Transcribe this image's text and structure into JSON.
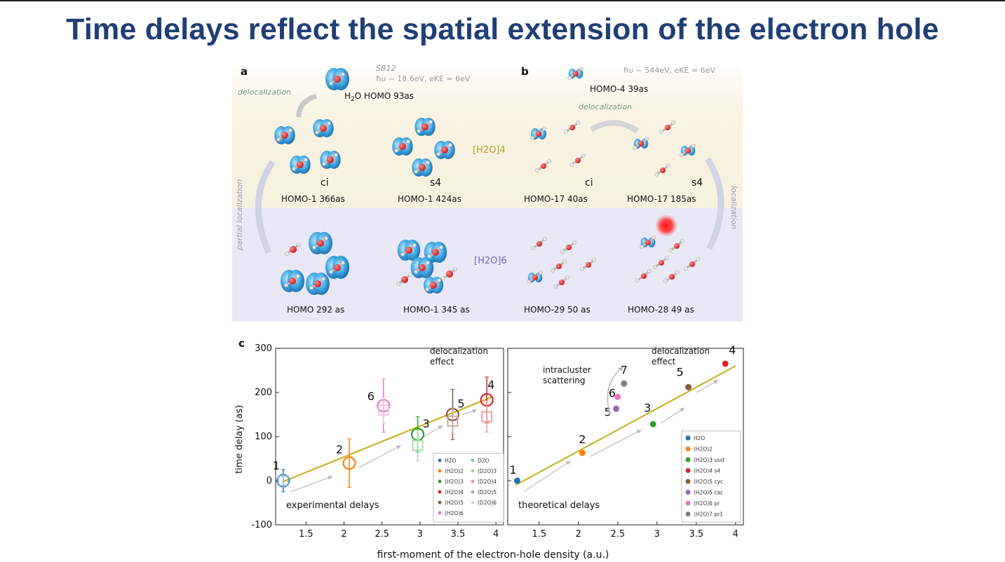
{
  "slide": {
    "title": "Time delays reflect the spatial extension of the electron hole"
  },
  "panel_a": {
    "letter": "a",
    "sb_label": "SB12",
    "energy_label": "ħυ ~ 18.6eV, eKE = 6eV",
    "top_label_pre": "H",
    "top_label_sub": "2",
    "top_label_post": "O HOMO 93as",
    "delocalization": "delocalization",
    "partial_localization": "partial localization",
    "cluster4_label": "[H2O]4",
    "cluster6_label": "[H2O]6",
    "ci": "ci",
    "s4": "s4",
    "homo1_ci": "HOMO-1 366as",
    "homo1_s4": "HOMO-1 424as",
    "homo_292": "HOMO 292 as",
    "homo1_345": "HOMO-1 345 as"
  },
  "panel_b": {
    "letter": "b",
    "energy_label": "ħυ ~ 544eV, eKE = 6eV",
    "top_label": "HOMO-4 39as",
    "delocalization": "delocalization",
    "localization": "localization",
    "ci": "ci",
    "s4": "s4",
    "homo17_ci": "HOMO-17 40as",
    "homo17_s4": "HOMO-17 185as",
    "homo29": "HOMO-29 50 as",
    "homo28": "HOMO-28 49 as"
  },
  "panel_c": {
    "letter": "c",
    "ylabel": "time delay (as)",
    "xlabel": "first-moment of the electron-hole density (a.u.)",
    "left_note": "delocalization\neffect",
    "left_caption": "experimental delays",
    "right_note": "delocalization\neffect",
    "right_caption": "theoretical delays",
    "intracluster": "intracluster\nscattering"
  },
  "colors": {
    "title": "#1f3f75",
    "fit_line": "#c9b42a",
    "band_top": "#f7f2df",
    "band_bottom": "#e9e8f6",
    "water_h2o": "#1f77b4",
    "dimer": "#ff7f0e",
    "trimer": "#2ca02c",
    "tetramer": "#d62728",
    "pentamer": "#8c564b",
    "pentamer_cac": "#9467bd",
    "hexamer": "#e377c2",
    "heptamer": "#7f7f7f"
  },
  "chart_data": [
    {
      "type": "scatter",
      "title": "",
      "xlabel": "first-moment of the electron-hole density (a.u.)",
      "ylabel": "time delay (as)",
      "xlim": [
        1.1,
        4.1
      ],
      "ylim": [
        -100,
        300
      ],
      "xticks": [
        "1.5",
        "2",
        "2.5",
        "3",
        "3.5",
        "4"
      ],
      "yticks": [
        "-100",
        "0",
        "100",
        "200",
        "300"
      ],
      "fit_line": {
        "x": [
          1.2,
          3.95
        ],
        "y": [
          -2,
          190
        ]
      },
      "series": [
        {
          "name": "H2O",
          "color": "#1f77b4",
          "x": [
            1.2
          ],
          "y": [
            0
          ],
          "err": [
            25
          ],
          "label": "1"
        },
        {
          "name": "(H2O)2",
          "color": "#ff7f0e",
          "x": [
            2.07
          ],
          "y": [
            40
          ],
          "err": [
            55
          ],
          "label": "2"
        },
        {
          "name": "(H2O)3",
          "color": "#2ca02c",
          "x": [
            2.97
          ],
          "y": [
            105
          ],
          "err": [
            40
          ],
          "label": "3"
        },
        {
          "name": "(H2O)4",
          "color": "#d62728",
          "x": [
            3.88
          ],
          "y": [
            183
          ],
          "err": [
            52
          ],
          "label": "4"
        },
        {
          "name": "(H2O)5",
          "color": "#8c564b",
          "x": [
            3.43
          ],
          "y": [
            150
          ],
          "err": [
            57
          ],
          "label": "5"
        },
        {
          "name": "(H2O)6",
          "color": "#e377c2",
          "x": [
            2.52
          ],
          "y": [
            170
          ],
          "err": [
            60
          ],
          "label": "6"
        },
        {
          "name": "D2O",
          "color": "#8fbde0",
          "x": [
            1.2
          ],
          "y": [
            0
          ],
          "err": [
            15
          ],
          "label": ""
        },
        {
          "name": "(D2O)3",
          "color": "#9fd89f",
          "x": [
            2.97
          ],
          "y": [
            80
          ],
          "err": [
            35
          ],
          "label": ""
        },
        {
          "name": "(D2O)4",
          "color": "#ee9a9a",
          "x": [
            3.88
          ],
          "y": [
            145
          ],
          "err": [
            35
          ],
          "label": ""
        },
        {
          "name": "(D2O)5",
          "color": "#c6a79f",
          "x": [
            3.43
          ],
          "y": [
            135
          ],
          "err": [
            30
          ],
          "label": ""
        },
        {
          "name": "(D2O)6",
          "color": "#f4bfe2",
          "x": [
            2.52
          ],
          "y": [
            160
          ],
          "err": [
            30
          ],
          "label": ""
        }
      ],
      "legend": {
        "placement": "bottom-right",
        "col1": [
          "H2O",
          "(H2O)2",
          "(H2O)3",
          "(H2O)4",
          "(H2O)5",
          "(H2O)6"
        ],
        "col2": [
          "D2O",
          "(D2O)3",
          "(D2O)4",
          "(D2O)5",
          "(D2O)6"
        ]
      },
      "annotations": [
        "experimental delays",
        "delocalization effect"
      ]
    },
    {
      "type": "scatter",
      "title": "",
      "xlabel": "first-moment of the electron-hole density (a.u.)",
      "ylabel": "",
      "xlim": [
        1.1,
        4.1
      ],
      "ylim": [
        -100,
        300
      ],
      "xticks": [
        "1.5",
        "2",
        "2.5",
        "3",
        "3.5",
        "4"
      ],
      "fit_line": {
        "x": [
          1.2,
          4.0
        ],
        "y": [
          -10,
          260
        ]
      },
      "series": [
        {
          "name": "H2O",
          "color": "#1f77b4",
          "x": [
            1.22
          ],
          "y": [
            0
          ],
          "label": "1"
        },
        {
          "name": "(H2O)2",
          "color": "#ff7f0e",
          "x": [
            2.05
          ],
          "y": [
            63
          ],
          "label": "2"
        },
        {
          "name": "(H2O)3 uud",
          "color": "#2ca02c",
          "x": [
            2.95
          ],
          "y": [
            128
          ],
          "label": "3"
        },
        {
          "name": "(H2O)4 s4",
          "color": "#d62728",
          "x": [
            3.87
          ],
          "y": [
            265
          ],
          "label": "4"
        },
        {
          "name": "(H2O)5 cyc",
          "color": "#8c564b",
          "x": [
            3.4
          ],
          "y": [
            212
          ],
          "label": "5"
        },
        {
          "name": "(H2O)5 cac",
          "color": "#9467bd",
          "x": [
            2.48
          ],
          "y": [
            163
          ],
          "label": "5"
        },
        {
          "name": "(H2O)6 pr",
          "color": "#e377c2",
          "x": [
            2.5
          ],
          "y": [
            190
          ],
          "label": "6"
        },
        {
          "name": "(H2O)7 pr1",
          "color": "#7f7f7f",
          "x": [
            2.58
          ],
          "y": [
            220
          ],
          "label": "7"
        }
      ],
      "legend": {
        "placement": "bottom-right",
        "items": [
          "H2O",
          "(H2O)2",
          "(H2O)3 uud",
          "(H2O)4 s4",
          "(H2O)5 cyc",
          "(H2O)5 cac",
          "(H2O)6 pr",
          "(H2O)7 pr1"
        ]
      },
      "annotations": [
        "theoretical delays",
        "delocalization effect",
        "intracluster scattering"
      ]
    }
  ]
}
